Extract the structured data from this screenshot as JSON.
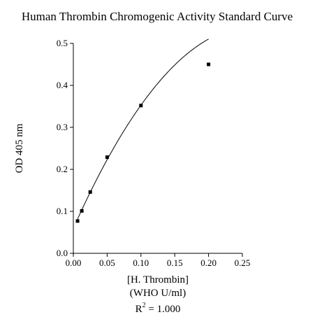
{
  "chart_data": {
    "type": "scatter",
    "title": "Human Thrombin Chromogenic Activity Standard Curve",
    "xlabel_line1": "[H. Thrombin]",
    "xlabel_line2": "(WHO U/ml)",
    "ylabel": "OD 405 nm",
    "r2_prefix": "R",
    "r2_exp": "2",
    "r2_value": " = 1.000",
    "xlim": [
      0,
      0.25
    ],
    "ylim": [
      0,
      0.5
    ],
    "x_ticks": [
      0,
      0.05,
      0.1,
      0.15,
      0.2,
      0.25
    ],
    "x_tick_labels": [
      "0.00",
      "0.05",
      "0.10",
      "0.15",
      "0.20",
      "0.25"
    ],
    "y_ticks": [
      0,
      0.1,
      0.2,
      0.3,
      0.4,
      0.5
    ],
    "y_tick_labels": [
      "0.0",
      "0.1",
      "0.2",
      "0.3",
      "0.4",
      "0.5"
    ],
    "grid": false,
    "legend": "none",
    "series": [
      {
        "x": [
          0.00625,
          0.0125,
          0.025,
          0.05,
          0.1,
          0.2
        ],
        "y": [
          0.077,
          0.101,
          0.146,
          0.229,
          0.352,
          0.45
        ]
      }
    ],
    "fit_curve": {
      "type": "quadratic",
      "coefficients": [
        0.0594,
        3.6143,
        -6.8
      ]
    },
    "colors": {
      "marker": "#000000",
      "line": "#000000",
      "axis": "#000000"
    }
  }
}
